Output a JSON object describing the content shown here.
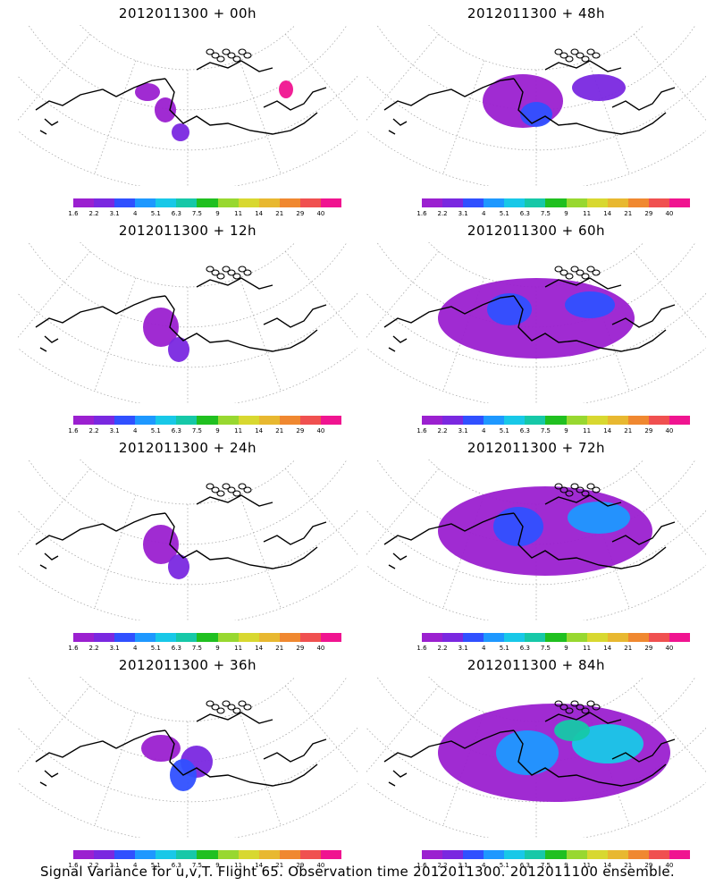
{
  "panels": [
    {
      "title": "2012011300 + 00h",
      "level": 0
    },
    {
      "title": "2012011300 + 48h",
      "level": 3
    },
    {
      "title": "2012011300 + 12h",
      "level": 1
    },
    {
      "title": "2012011300 + 60h",
      "level": 4
    },
    {
      "title": "2012011300 + 24h",
      "level": 1
    },
    {
      "title": "2012011300 + 72h",
      "level": 5
    },
    {
      "title": "2012011300 + 36h",
      "level": 2
    },
    {
      "title": "2012011300 + 84h",
      "level": 6
    }
  ],
  "colorbar": {
    "labels": [
      "1.6",
      "2.2",
      "3.1",
      "4",
      "5.1",
      "6.3",
      "7.5",
      "9",
      "11",
      "14",
      "21",
      "29",
      "40"
    ],
    "colors": [
      "#9b20d0",
      "#7a28e0",
      "#3050ff",
      "#1e98ff",
      "#18c8e8",
      "#16c8a8",
      "#20c020",
      "#98d830",
      "#d8d830",
      "#e8b830",
      "#f08830",
      "#f05050",
      "#f01490"
    ]
  },
  "footer": "Signal Variance for u,v,T. Flight 65. Observation time 2012011300. 2012011100 ensemble."
}
